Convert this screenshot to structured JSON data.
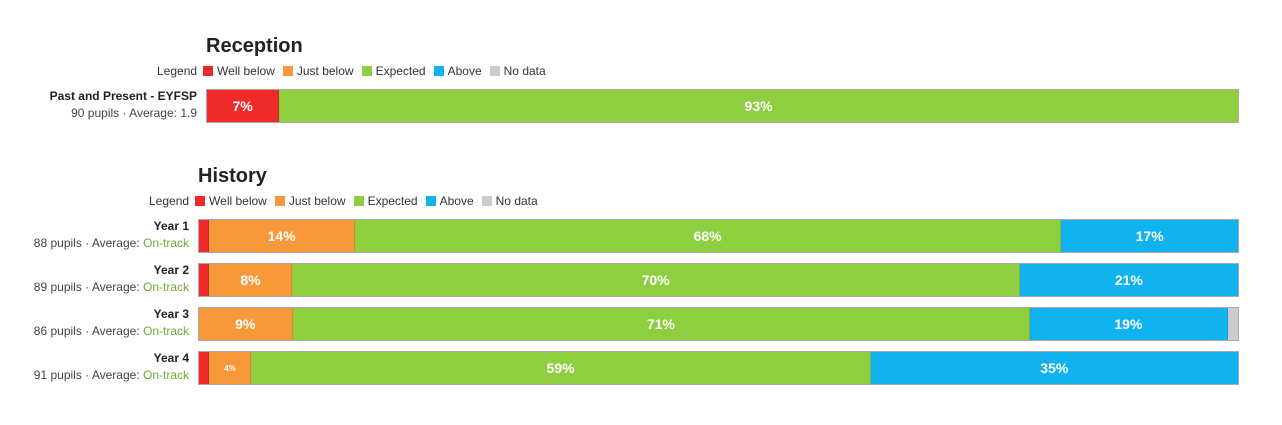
{
  "colors": {
    "well_below": "#ee2a2a",
    "just_below": "#f7993b",
    "expected": "#8dcf3f",
    "above": "#10b2f0",
    "no_data": "#cccccc"
  },
  "legend": {
    "label": "Legend",
    "items": [
      "Well below",
      "Just below",
      "Expected",
      "Above",
      "No data"
    ]
  },
  "chart_data": [
    {
      "type": "bar",
      "orientation": "horizontal-stacked-100",
      "title": "Reception",
      "legend_placement": "top-left",
      "series_names": [
        "Well below",
        "Just below",
        "Expected",
        "Above",
        "No data"
      ],
      "rows": [
        {
          "name": "Past and Present - EYFSP",
          "sub_prefix": "90 pupils · Average: ",
          "average": "1.9",
          "values": [
            7,
            0,
            93,
            0,
            0
          ],
          "labels": [
            "7%",
            "",
            "93%",
            "",
            ""
          ]
        }
      ]
    },
    {
      "type": "bar",
      "orientation": "horizontal-stacked-100",
      "title": "History",
      "legend_placement": "top-left",
      "series_names": [
        "Well below",
        "Just below",
        "Expected",
        "Above",
        "No data"
      ],
      "rows": [
        {
          "name": "Year 1",
          "sub_prefix": "88 pupils · Average: ",
          "average": "On-track",
          "values": [
            1,
            14,
            68,
            17,
            0
          ],
          "labels": [
            "",
            "14%",
            "68%",
            "17%",
            ""
          ]
        },
        {
          "name": "Year 2",
          "sub_prefix": "89 pupils · Average: ",
          "average": "On-track",
          "values": [
            1,
            8,
            70,
            21,
            0
          ],
          "labels": [
            "",
            "8%",
            "70%",
            "21%",
            ""
          ]
        },
        {
          "name": "Year 3",
          "sub_prefix": "86 pupils · Average: ",
          "average": "On-track",
          "values": [
            0,
            9,
            71,
            19,
            1
          ],
          "labels": [
            "",
            "9%",
            "71%",
            "19%",
            ""
          ]
        },
        {
          "name": "Year 4",
          "sub_prefix": "91 pupils · Average: ",
          "average": "On-track",
          "values": [
            1,
            4,
            59,
            35,
            0
          ],
          "labels": [
            "",
            "4%",
            "59%",
            "35%",
            ""
          ]
        }
      ]
    }
  ]
}
